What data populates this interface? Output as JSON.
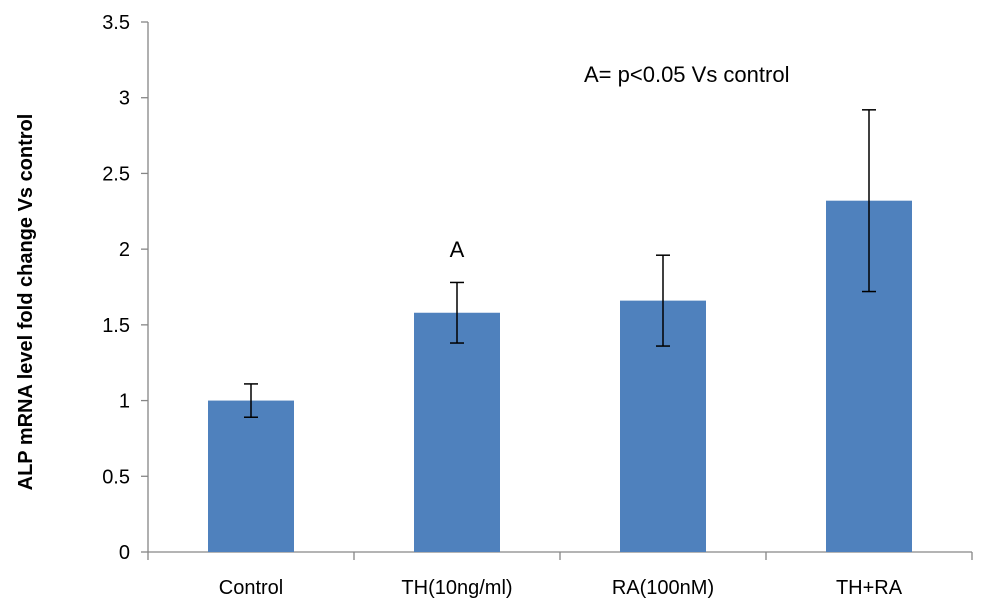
{
  "chart_data": {
    "type": "bar",
    "title": "",
    "xlabel": "",
    "ylabel": "ALP mRNA level fold change Vs control",
    "ylim": [
      0,
      3.5
    ],
    "yticks": [
      "0",
      "0.5",
      "1",
      "1.5",
      "2",
      "2.5",
      "3",
      "3.5"
    ],
    "grid": false,
    "categories": [
      "Control",
      "TH(10ng/ml)",
      "RA(100nM)",
      "TH+RA"
    ],
    "values": [
      1.0,
      1.58,
      1.66,
      2.32
    ],
    "error": [
      0.11,
      0.2,
      0.3,
      0.6
    ],
    "bar_labels": [
      "",
      "A",
      "",
      ""
    ],
    "annotation": "A= p<0.05 Vs control",
    "colors": {
      "bar": "#4F81BD",
      "axis": "#868686",
      "error_bar": "#000000"
    }
  }
}
